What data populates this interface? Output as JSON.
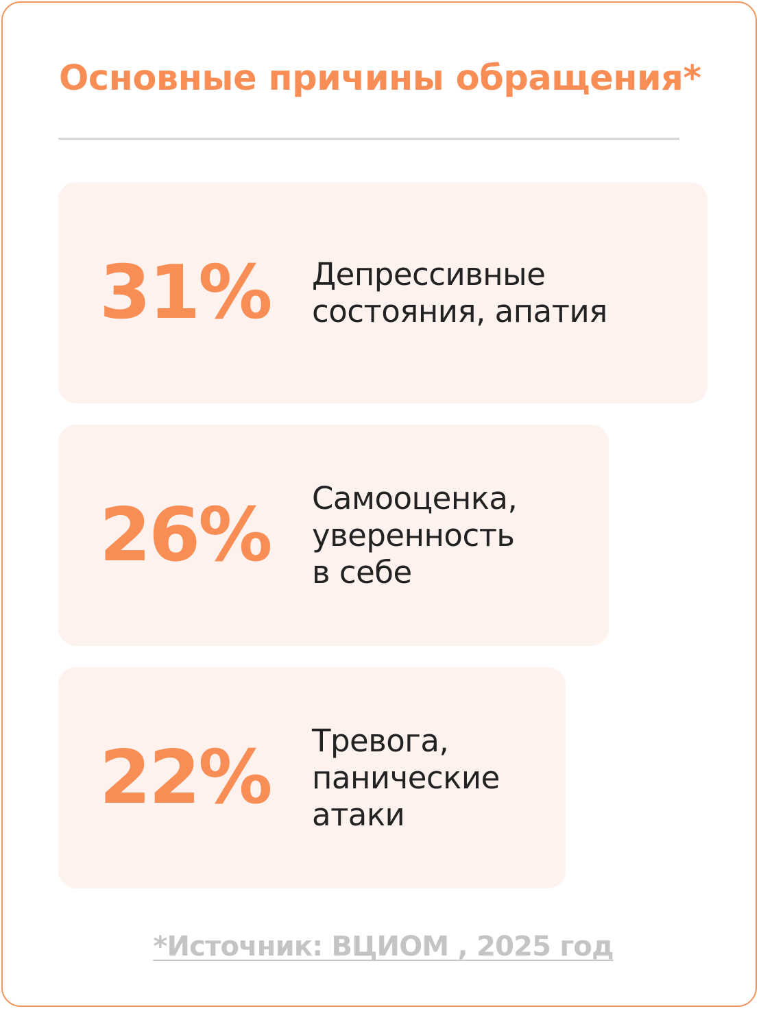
{
  "title": "Основные причины обращения*",
  "colors": {
    "accent": "#f88e55",
    "border": "#f0935a",
    "card_background": "#fdf2ee",
    "divider": "#d6d6d6",
    "body_text": "#222222",
    "source_text": "#c4c4c4"
  },
  "stats": [
    {
      "value": "31%",
      "label_lines": [
        "Депрессивные",
        "состояния, апатия"
      ]
    },
    {
      "value": "26%",
      "label_lines": [
        "Самооценка,",
        "уверенность",
        "в себе"
      ]
    },
    {
      "value": "22%",
      "label_lines": [
        "Тревога,",
        "панические",
        "атаки"
      ]
    }
  ],
  "source": "*Источник: ВЦИОМ , 2025 год"
}
